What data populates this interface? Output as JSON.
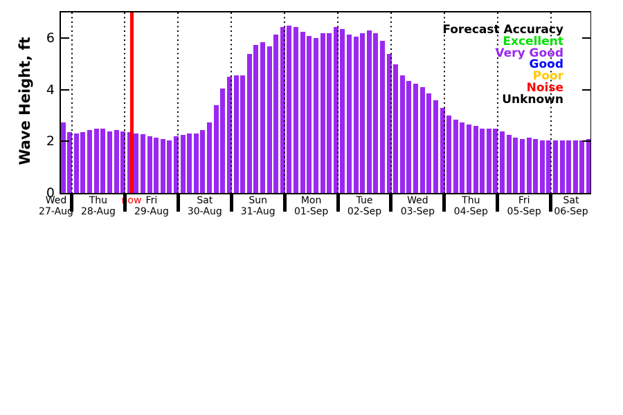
{
  "chart_data": {
    "type": "bar",
    "title": "",
    "ylabel": "Wave Height, ft",
    "ylim": [
      0,
      7
    ],
    "yticks": [
      "0",
      "2",
      "4",
      "6"
    ],
    "grid": "vertical dotted lines at each midnight day boundary",
    "bar_color": "#9B28F0",
    "bar_color_meaning": "Very Good",
    "bars_per_full_day": 8,
    "now_marker": {
      "label": "now",
      "color": "#FF0000",
      "between": [
        "28-Aug",
        "29-Aug"
      ]
    },
    "legend_position": "top-right",
    "legend_title": "Forecast Accuracy",
    "legend_items": [
      {
        "label": "Excellent",
        "color": "#00E100"
      },
      {
        "label": "Very Good",
        "color": "#9B28F0"
      },
      {
        "label": "Good",
        "color": "#0000FF"
      },
      {
        "label": "Poor",
        "color": "#FFC800"
      },
      {
        "label": "Noise",
        "color": "#FF0000"
      },
      {
        "label": "Unknown",
        "color": "#000000"
      }
    ],
    "days": [
      {
        "day": "Wed",
        "date": "27-Aug",
        "values": [
          2.75,
          2.35
        ]
      },
      {
        "day": "Thu",
        "date": "28-Aug",
        "values": [
          2.3,
          2.35,
          2.45,
          2.5,
          2.5,
          2.4,
          2.45,
          2.4
        ]
      },
      {
        "day": "Fri",
        "date": "29-Aug",
        "values": [
          2.35,
          2.3,
          2.27,
          2.2,
          2.15,
          2.1,
          2.05,
          2.2
        ]
      },
      {
        "day": "Sat",
        "date": "30-Aug",
        "values": [
          2.25,
          2.3,
          2.3,
          2.45,
          2.75,
          3.4,
          4.05,
          4.5
        ]
      },
      {
        "day": "Sun",
        "date": "31-Aug",
        "values": [
          4.55,
          4.55,
          5.4,
          5.75,
          5.85,
          5.7,
          6.15,
          6.45
        ]
      },
      {
        "day": "Mon",
        "date": "01-Sep",
        "values": [
          6.5,
          6.45,
          6.25,
          6.1,
          6.0,
          6.2,
          6.2,
          6.45
        ]
      },
      {
        "day": "Tue",
        "date": "02-Sep",
        "values": [
          6.35,
          6.15,
          6.05,
          6.2,
          6.3,
          6.2,
          5.9,
          5.4
        ]
      },
      {
        "day": "Wed",
        "date": "03-Sep",
        "values": [
          5.0,
          4.55,
          4.35,
          4.25,
          4.1,
          3.85,
          3.6,
          3.3
        ]
      },
      {
        "day": "Thu",
        "date": "04-Sep",
        "values": [
          3.0,
          2.85,
          2.75,
          2.65,
          2.6,
          2.5,
          2.5,
          2.5
        ]
      },
      {
        "day": "Fri",
        "date": "05-Sep",
        "values": [
          2.4,
          2.25,
          2.15,
          2.1,
          2.15,
          2.1,
          2.05,
          2.05
        ]
      },
      {
        "day": "Sat",
        "date": "06-Sep",
        "values": [
          2.05,
          2.05,
          2.05,
          2.05,
          2.05,
          2.1
        ]
      }
    ]
  }
}
